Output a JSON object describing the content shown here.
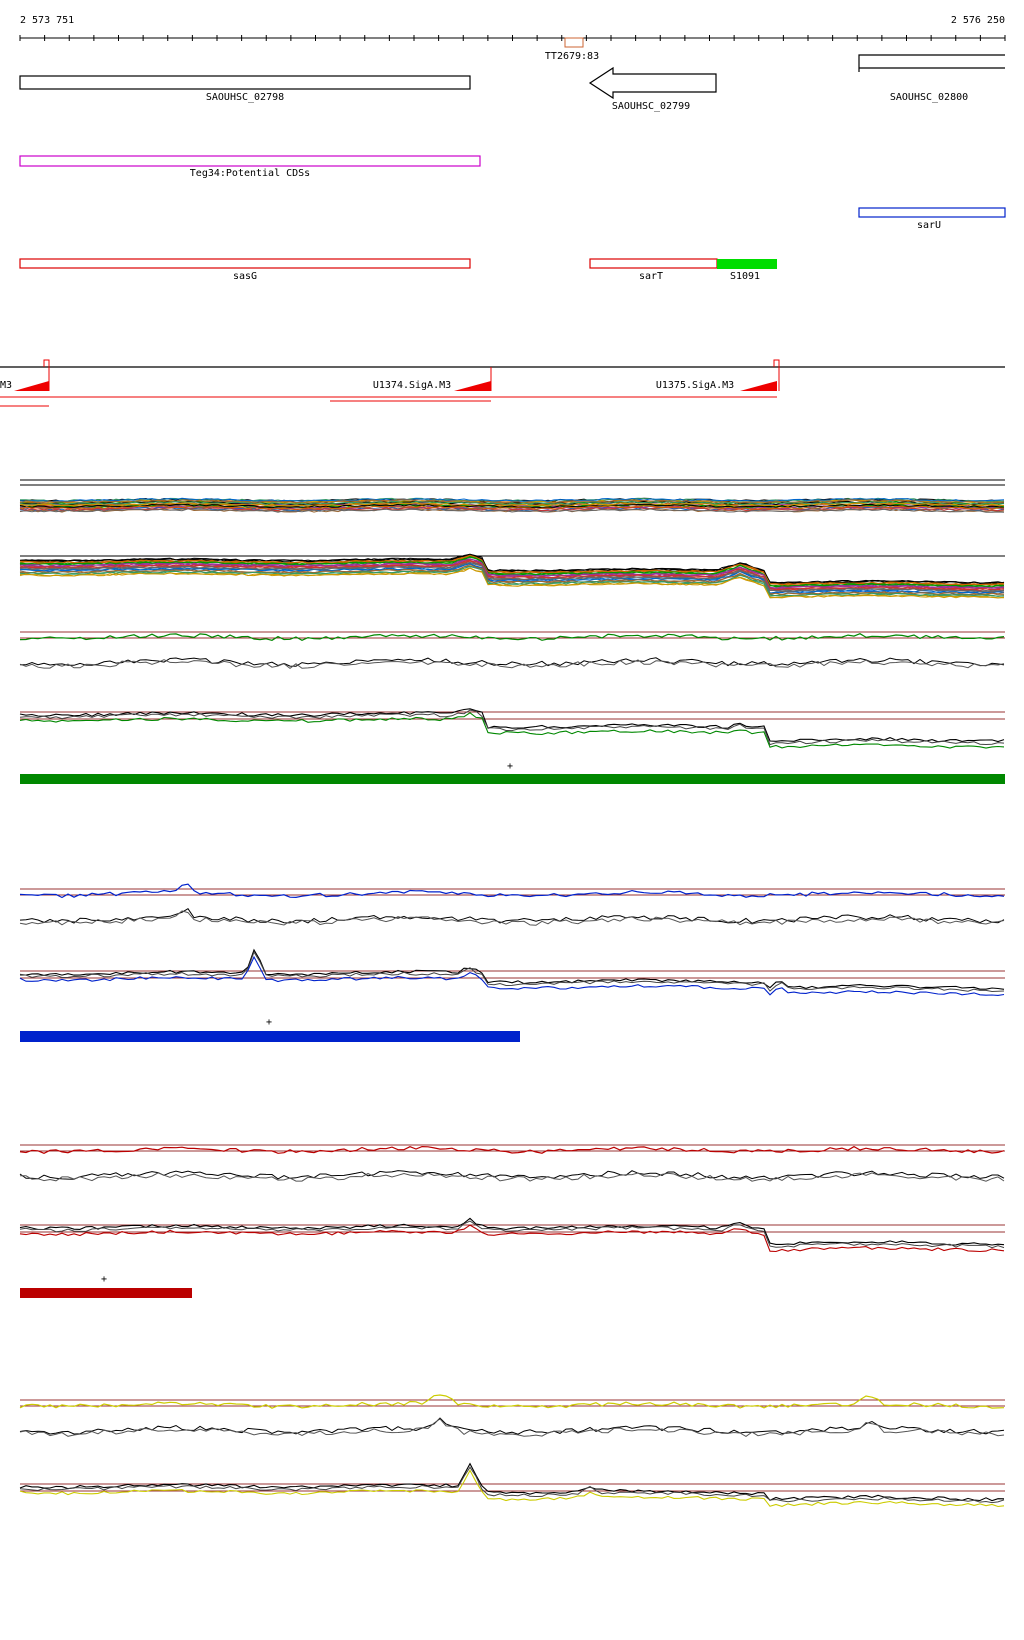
{
  "ruler": {
    "start_label": "2 573 751",
    "end_label": "2 576 250",
    "marker_label": "TT2679:83"
  },
  "genes": [
    {
      "id": "SAOUHSC_02798",
      "label": "SAOUHSC_02798",
      "color": "#000000",
      "shape": "box"
    },
    {
      "id": "SAOUHSC_02799",
      "label": "SAOUHSC_02799",
      "color": "#000000",
      "shape": "arrow-left"
    },
    {
      "id": "SAOUHSC_02800",
      "label": "SAOUHSC_02800",
      "color": "#000000",
      "shape": "box-open"
    }
  ],
  "annotations": [
    {
      "label": "Teg34:Potential CDSs",
      "color": "#cc00cc"
    },
    {
      "label": "sarU",
      "color": "#0022cc"
    },
    {
      "label": "sasG",
      "color": "#dd0000"
    },
    {
      "label": "sarT",
      "color": "#dd0000"
    },
    {
      "label": "S1091",
      "color": "#00dd00",
      "filled": true
    }
  ],
  "promoters": {
    "left_cut_label": "M3",
    "items": [
      {
        "label": "U1374.SigA.M3"
      },
      {
        "label": "U1375.SigA.M3"
      }
    ]
  },
  "conditions": [
    {
      "color": "#008800",
      "bar_label": "+"
    },
    {
      "color": "#0022cc",
      "bar_label": "+"
    },
    {
      "color": "#bb0000",
      "bar_label": "+"
    },
    {
      "color": "#cccc00",
      "bar_label": ""
    }
  ],
  "colors": {
    "ruler": "#000000",
    "threshold_line": "#993333",
    "multi_track": [
      "#000000",
      "#cc6600",
      "#009900",
      "#993399",
      "#cc3333",
      "#666666",
      "#0066cc",
      "#996633",
      "#339966",
      "#cc9900"
    ]
  }
}
